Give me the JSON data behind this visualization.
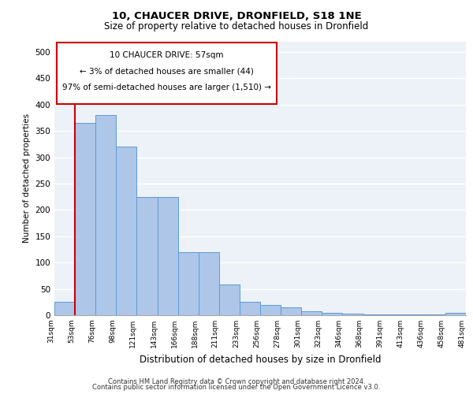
{
  "title1": "10, CHAUCER DRIVE, DRONFIELD, S18 1NE",
  "title2": "Size of property relative to detached houses in Dronfield",
  "xlabel": "Distribution of detached houses by size in Dronfield",
  "ylabel": "Number of detached properties",
  "footer1": "Contains HM Land Registry data © Crown copyright and database right 2024.",
  "footer2": "Contains public sector information licensed under the Open Government Licence v3.0.",
  "annotation_line1": "10 CHAUCER DRIVE: 57sqm",
  "annotation_line2": "← 3% of detached houses are smaller (44)",
  "annotation_line3": "97% of semi-detached houses are larger (1,510) →",
  "bar_heights": [
    25,
    365,
    380,
    320,
    225,
    225,
    120,
    120,
    58,
    25,
    20,
    15,
    8,
    5,
    3,
    2,
    1,
    1,
    1,
    5
  ],
  "tick_labels": [
    "31sqm",
    "53sqm",
    "76sqm",
    "98sqm",
    "121sqm",
    "143sqm",
    "166sqm",
    "188sqm",
    "211sqm",
    "233sqm",
    "256sqm",
    "278sqm",
    "301sqm",
    "323sqm",
    "346sqm",
    "368sqm",
    "391sqm",
    "413sqm",
    "436sqm",
    "458sqm",
    "481sqm"
  ],
  "bar_color": "#aec6e8",
  "bar_edge_color": "#5b9bd5",
  "vline_x": 1,
  "vline_color": "#cc0000",
  "ylim": [
    0,
    520
  ],
  "yticks": [
    0,
    50,
    100,
    150,
    200,
    250,
    300,
    350,
    400,
    450,
    500
  ],
  "bg_color": "#edf2f9",
  "annotation_box_color": "#ffffff",
  "annotation_box_edge": "#cc0000"
}
